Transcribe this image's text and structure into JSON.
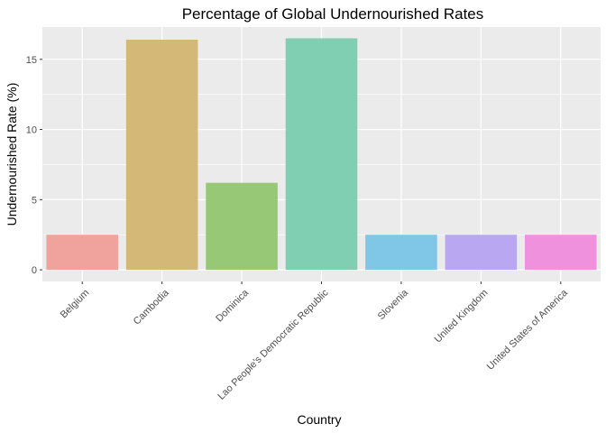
{
  "chart_data": {
    "type": "bar",
    "title": "Percentage of Global Undernourished Rates",
    "xlabel": "Country",
    "ylabel": "Undernourished Rate (%)",
    "categories": [
      "Belgium",
      "Cambodia",
      "Dominica",
      "Lao People's Democratic Republic",
      "Slovenia",
      "United Kingdom",
      "United States of America"
    ],
    "values": [
      2.5,
      16.4,
      6.2,
      16.5,
      2.5,
      2.5,
      2.5
    ],
    "colors": [
      "#f0a39d",
      "#d4b877",
      "#96c876",
      "#80cfb2",
      "#80c6e6",
      "#b9a8f1",
      "#f091dd"
    ],
    "yticks": [
      0,
      5,
      10,
      15
    ],
    "ylim": [
      -0.83,
      17.3
    ],
    "grid": true,
    "legend": "none"
  }
}
